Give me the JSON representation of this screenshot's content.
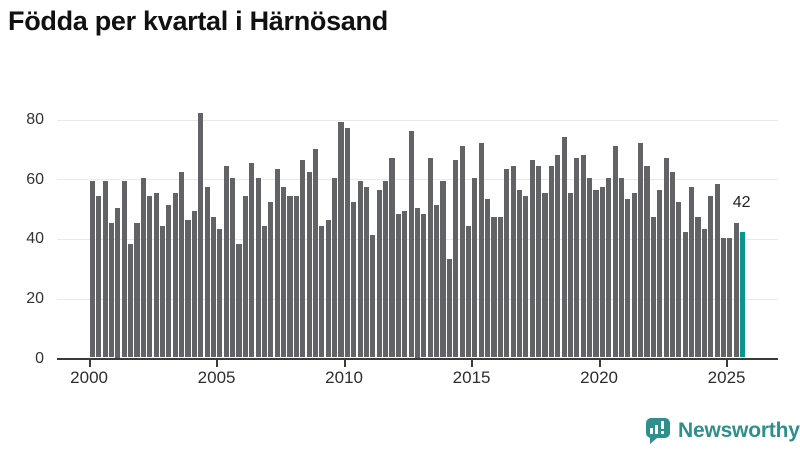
{
  "title": "Födda per kvartal i Härnösand",
  "chart_data": {
    "type": "bar",
    "title": "Födda per kvartal i Härnösand",
    "xlabel": "",
    "ylabel": "",
    "ylim": [
      0,
      80
    ],
    "yticks": [
      0,
      20,
      40,
      60,
      80
    ],
    "xticks": [
      "2000",
      "2005",
      "2010",
      "2015",
      "2020",
      "2025"
    ],
    "grid": "horizontal",
    "frequency": "quarterly",
    "first_period": "2000 Q1",
    "last_period": "2025 Q3",
    "bar_color": "#626366",
    "highlight_color": "#0b968d",
    "highlight_label": "42",
    "last_point": {
      "period": "2025 Q3",
      "value": 42
    },
    "by_year": [
      {
        "year": "2000",
        "values": [
          59,
          54,
          59,
          45
        ]
      },
      {
        "year": "2001",
        "values": [
          50,
          59,
          38,
          45
        ]
      },
      {
        "year": "2002",
        "values": [
          60,
          54,
          55,
          44
        ]
      },
      {
        "year": "2003",
        "values": [
          51,
          55,
          62,
          46
        ]
      },
      {
        "year": "2004",
        "values": [
          49,
          82,
          57,
          47
        ]
      },
      {
        "year": "2005",
        "values": [
          43,
          64,
          60,
          38
        ]
      },
      {
        "year": "2006",
        "values": [
          54,
          65,
          60,
          44
        ]
      },
      {
        "year": "2007",
        "values": [
          52,
          63,
          57,
          54
        ]
      },
      {
        "year": "2008",
        "values": [
          54,
          66,
          62,
          70
        ]
      },
      {
        "year": "2009",
        "values": [
          44,
          46,
          60,
          79
        ]
      },
      {
        "year": "2010",
        "values": [
          77,
          52,
          59,
          57
        ]
      },
      {
        "year": "2011",
        "values": [
          41,
          56,
          59,
          67
        ]
      },
      {
        "year": "2012",
        "values": [
          48,
          49,
          76,
          50
        ]
      },
      {
        "year": "2013",
        "values": [
          48,
          67,
          51,
          59
        ]
      },
      {
        "year": "2014",
        "values": [
          33,
          66,
          71,
          44
        ]
      },
      {
        "year": "2015",
        "values": [
          60,
          72,
          53,
          47
        ]
      },
      {
        "year": "2016",
        "values": [
          47,
          63,
          64,
          56
        ]
      },
      {
        "year": "2017",
        "values": [
          54,
          66,
          64,
          55
        ]
      },
      {
        "year": "2018",
        "values": [
          64,
          68,
          74,
          55
        ]
      },
      {
        "year": "2019",
        "values": [
          67,
          68,
          60,
          56
        ]
      },
      {
        "year": "2020",
        "values": [
          57,
          60,
          71,
          60
        ]
      },
      {
        "year": "2021",
        "values": [
          53,
          55,
          72,
          64
        ]
      },
      {
        "year": "2022",
        "values": [
          47,
          56,
          67,
          62
        ]
      },
      {
        "year": "2023",
        "values": [
          52,
          42,
          57,
          47
        ]
      },
      {
        "year": "2024",
        "values": [
          43,
          54,
          58,
          40
        ]
      },
      {
        "year": "2025",
        "values": [
          40,
          45,
          42
        ]
      }
    ]
  },
  "branding": {
    "logo_text": "Newsworthy",
    "logo_color": "#2e8f8b"
  }
}
